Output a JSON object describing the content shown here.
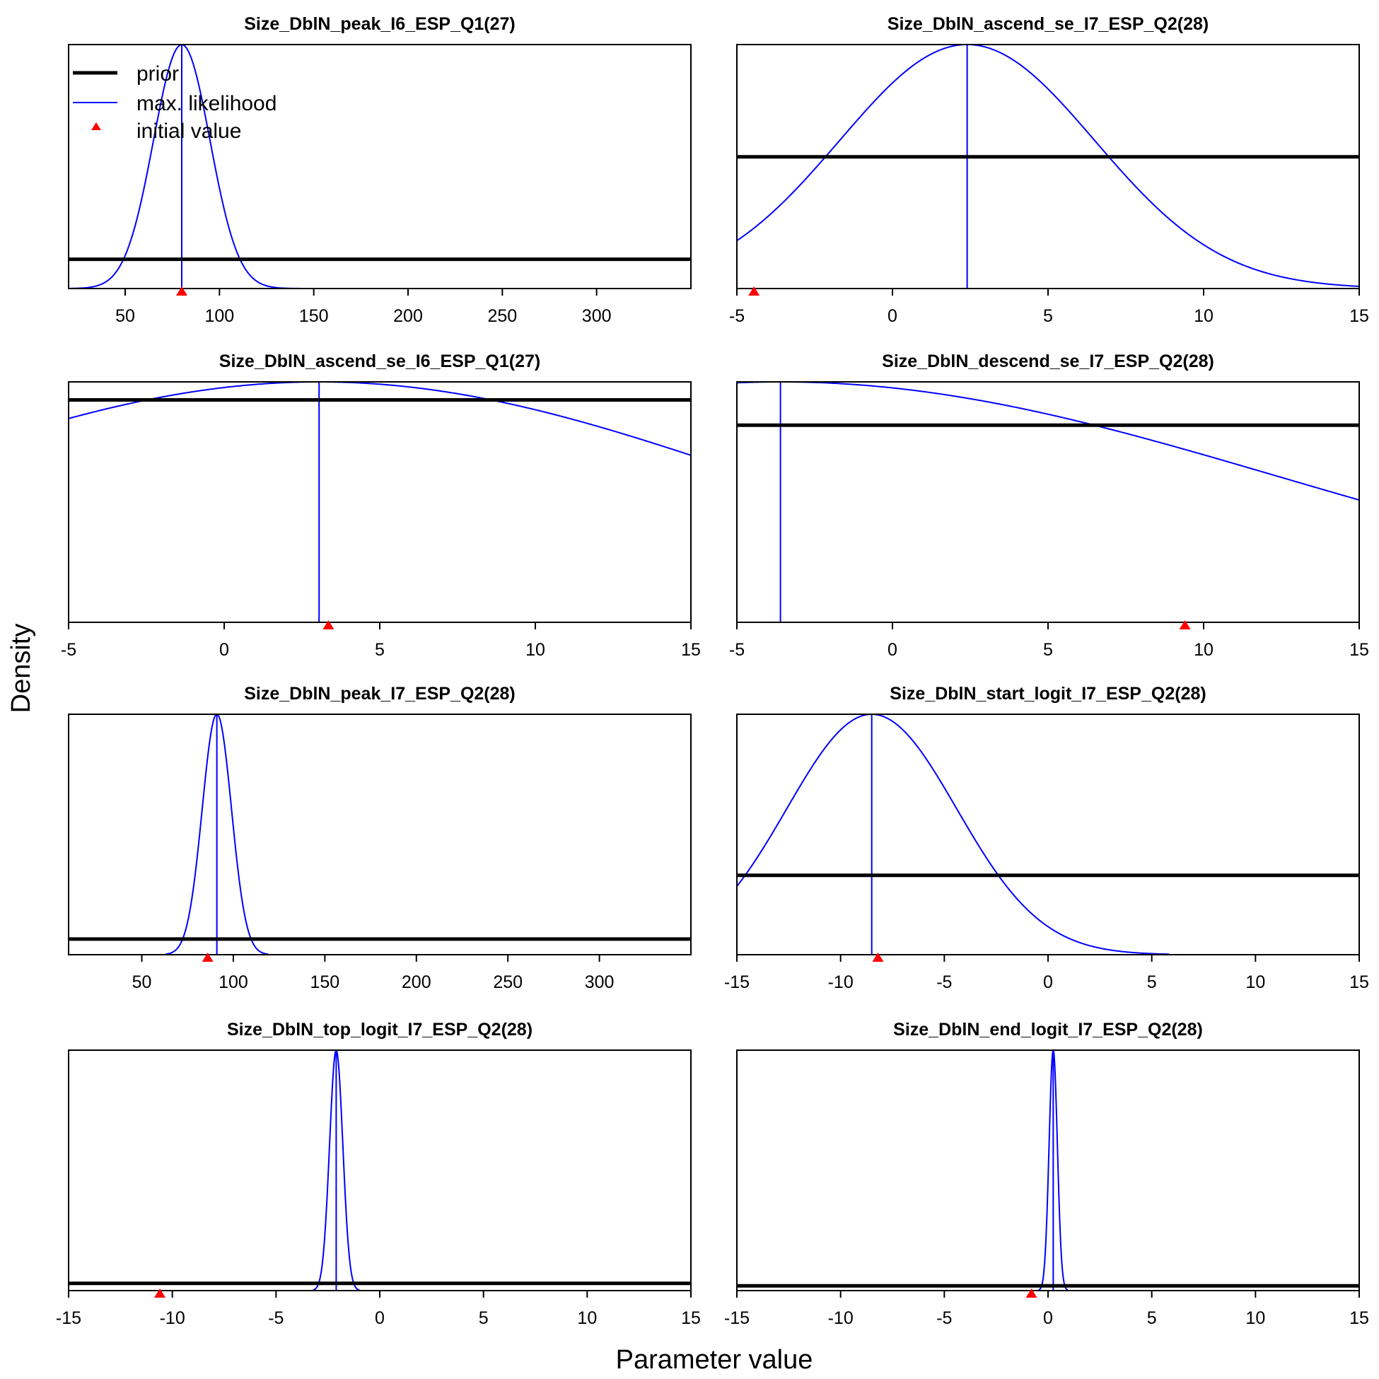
{
  "figure": {
    "ylabel": "Density",
    "xlabel": "Parameter value",
    "legend": {
      "placement": "top-left of first panel",
      "entries": [
        {
          "label": "prior",
          "color": "#000000",
          "style": "thick-line"
        },
        {
          "label": "max. likelihood",
          "color": "#0000ff",
          "style": "thin-line"
        },
        {
          "label": "initial value",
          "color": "#ff0000",
          "style": "triangle"
        }
      ]
    }
  },
  "chart_data": [
    {
      "type": "line",
      "title": "Size_DblN_peak_I6_ESP_Q1(27)",
      "xlim": [
        20,
        350
      ],
      "ticks": [
        50,
        100,
        150,
        200,
        250,
        300
      ],
      "series": [
        {
          "name": "prior",
          "kind": "flat",
          "level": 0.12
        },
        {
          "name": "max. likelihood",
          "kind": "normal",
          "mean": 80,
          "sd": 15,
          "tail": 0
        },
        {
          "name": "initial value",
          "x": 80
        }
      ]
    },
    {
      "type": "line",
      "title": "Size_DblN_ascend_se_I7_ESP_Q2(28)",
      "xlim": [
        -5,
        15
      ],
      "ticks": [
        -5,
        0,
        5,
        10,
        15
      ],
      "series": [
        {
          "name": "prior",
          "kind": "flat",
          "level": 0.54
        },
        {
          "name": "max. likelihood",
          "kind": "normal",
          "mean": 2.4,
          "sd": 4.1,
          "tail": 0
        },
        {
          "name": "initial value",
          "x": -4.45
        }
      ]
    },
    {
      "type": "line",
      "title": "Size_DblN_ascend_se_I6_ESP_Q1(27)",
      "xlim": [
        -5,
        15
      ],
      "ticks": [
        -5,
        0,
        5,
        10,
        15
      ],
      "series": [
        {
          "name": "prior",
          "kind": "flat",
          "level": 0.925
        },
        {
          "name": "max. likelihood",
          "kind": "normal",
          "mean": 3.05,
          "sd": 14,
          "tail": 0
        },
        {
          "name": "initial value",
          "x": 3.35
        }
      ]
    },
    {
      "type": "line",
      "title": "Size_DblN_descend_se_I7_ESP_Q2(28)",
      "xlim": [
        -5,
        15
      ],
      "ticks": [
        -5,
        0,
        5,
        10,
        15
      ],
      "series": [
        {
          "name": "prior",
          "kind": "flat",
          "level": 0.82
        },
        {
          "name": "max. likelihood",
          "kind": "normal",
          "mean": -3.6,
          "sd": 16,
          "tail": 0
        },
        {
          "name": "initial value",
          "x": 9.4
        }
      ]
    },
    {
      "type": "line",
      "title": "Size_DblN_peak_I7_ESP_Q2(28)",
      "xlim": [
        10,
        350
      ],
      "ticks": [
        50,
        100,
        150,
        200,
        250,
        300
      ],
      "series": [
        {
          "name": "prior",
          "kind": "flat",
          "level": 0.065
        },
        {
          "name": "max. likelihood",
          "kind": "normal",
          "mean": 91,
          "sd": 8,
          "tail": 3.5
        },
        {
          "name": "initial value",
          "x": 86
        }
      ]
    },
    {
      "type": "line",
      "title": "Size_DblN_start_logit_I7_ESP_Q2(28)",
      "xlim": [
        -15,
        15
      ],
      "ticks": [
        -15,
        -10,
        -5,
        0,
        5,
        10,
        15
      ],
      "series": [
        {
          "name": "prior",
          "kind": "flat",
          "level": 0.33
        },
        {
          "name": "max. likelihood",
          "kind": "normal",
          "mean": -8.5,
          "sd": 4.1,
          "tail": 3.5
        },
        {
          "name": "initial value",
          "x": -8.2
        }
      ]
    },
    {
      "type": "line",
      "title": "Size_DblN_top_logit_I7_ESP_Q2(28)",
      "xlim": [
        -15,
        15
      ],
      "ticks": [
        -15,
        -10,
        -5,
        0,
        5,
        10,
        15
      ],
      "series": [
        {
          "name": "prior",
          "kind": "flat",
          "level": 0.03
        },
        {
          "name": "max. likelihood",
          "kind": "normal",
          "mean": -2.1,
          "sd": 0.32,
          "tail": 3.5
        },
        {
          "name": "initial value",
          "x": -10.6
        }
      ]
    },
    {
      "type": "line",
      "title": "Size_DblN_end_logit_I7_ESP_Q2(28)",
      "xlim": [
        -15,
        15
      ],
      "ticks": [
        -15,
        -10,
        -5,
        0,
        5,
        10,
        15
      ],
      "series": [
        {
          "name": "prior",
          "kind": "flat",
          "level": 0.02
        },
        {
          "name": "max. likelihood",
          "kind": "normal",
          "mean": 0.25,
          "sd": 0.2,
          "tail": 3.5
        },
        {
          "name": "initial value",
          "x": -0.8
        }
      ]
    }
  ]
}
